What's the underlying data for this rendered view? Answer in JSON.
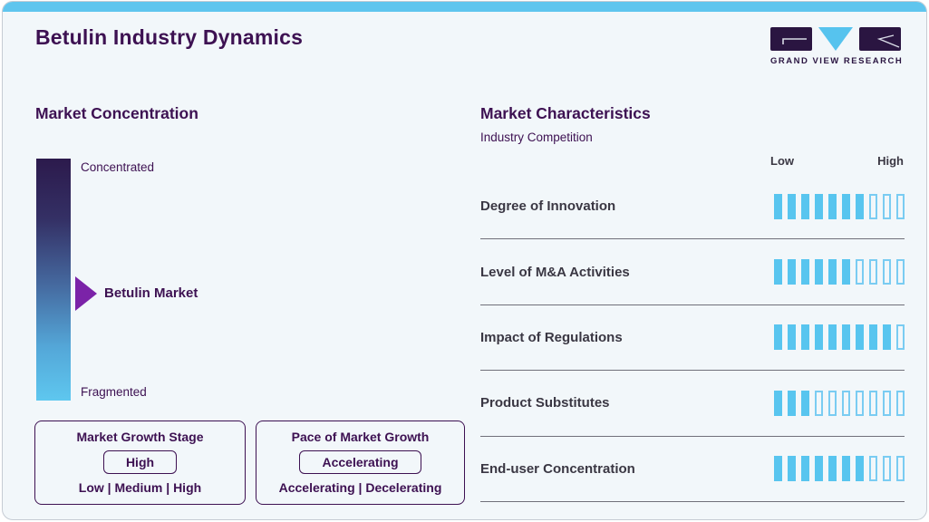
{
  "page": {
    "title": "Betulin Industry Dynamics"
  },
  "logo": {
    "name": "grand-view-research-logo",
    "text": "GRAND VIEW RESEARCH"
  },
  "colors": {
    "accent_cyan": "#5fc5ee",
    "brand_purple": "#3d1152",
    "logo_purple": "#2a1541",
    "bar_fill": "#58c5ef",
    "bar_outline": "#7accf2",
    "marker_purple": "#7b23a8",
    "gradient_top": "#2c1a4c",
    "gradient_bottom": "#5ec7ef",
    "row_text": "#3a3743",
    "background": "#f2f7fa"
  },
  "market_concentration": {
    "heading": "Market Concentration",
    "scale_top": "Concentrated",
    "scale_bottom": "Fragmented",
    "marker_label": "Betulin Market",
    "marker_position_pct_from_top": 56
  },
  "growth_stage_box": {
    "title": "Market Growth Stage",
    "selected": "High",
    "options": "Low | Medium | High"
  },
  "pace_box": {
    "title": "Pace of Market Growth",
    "selected": "Accelerating",
    "options": "Accelerating | Decelerating"
  },
  "market_characteristics": {
    "heading": "Market Characteristics",
    "subheading": "Industry Competition",
    "scale_low": "Low",
    "scale_high": "High",
    "segments_total": 10,
    "rows": [
      {
        "label": "Degree of Innovation",
        "value": 7
      },
      {
        "label": "Level of M&A Activities",
        "value": 6
      },
      {
        "label": "Impact of Regulations",
        "value": 9
      },
      {
        "label": "Product Substitutes",
        "value": 3
      },
      {
        "label": "End-user Concentration",
        "value": 7
      }
    ]
  },
  "chart_data": {
    "type": "bar",
    "title": "Market Characteristics",
    "subtitle": "Industry Competition",
    "orientation": "horizontal-rating",
    "categories": [
      "Degree of Innovation",
      "Level of M&A Activities",
      "Impact of Regulations",
      "Product Substitutes",
      "End-user Concentration"
    ],
    "values": [
      7,
      6,
      9,
      3,
      7
    ],
    "value_scale": {
      "min": 0,
      "max": 10,
      "min_label": "Low",
      "max_label": "High"
    },
    "legend": "none",
    "companion_scale": {
      "name": "Market Concentration",
      "top_label": "Concentrated",
      "bottom_label": "Fragmented",
      "marker": "Betulin Market",
      "marker_position_pct_from_top": 56
    }
  }
}
